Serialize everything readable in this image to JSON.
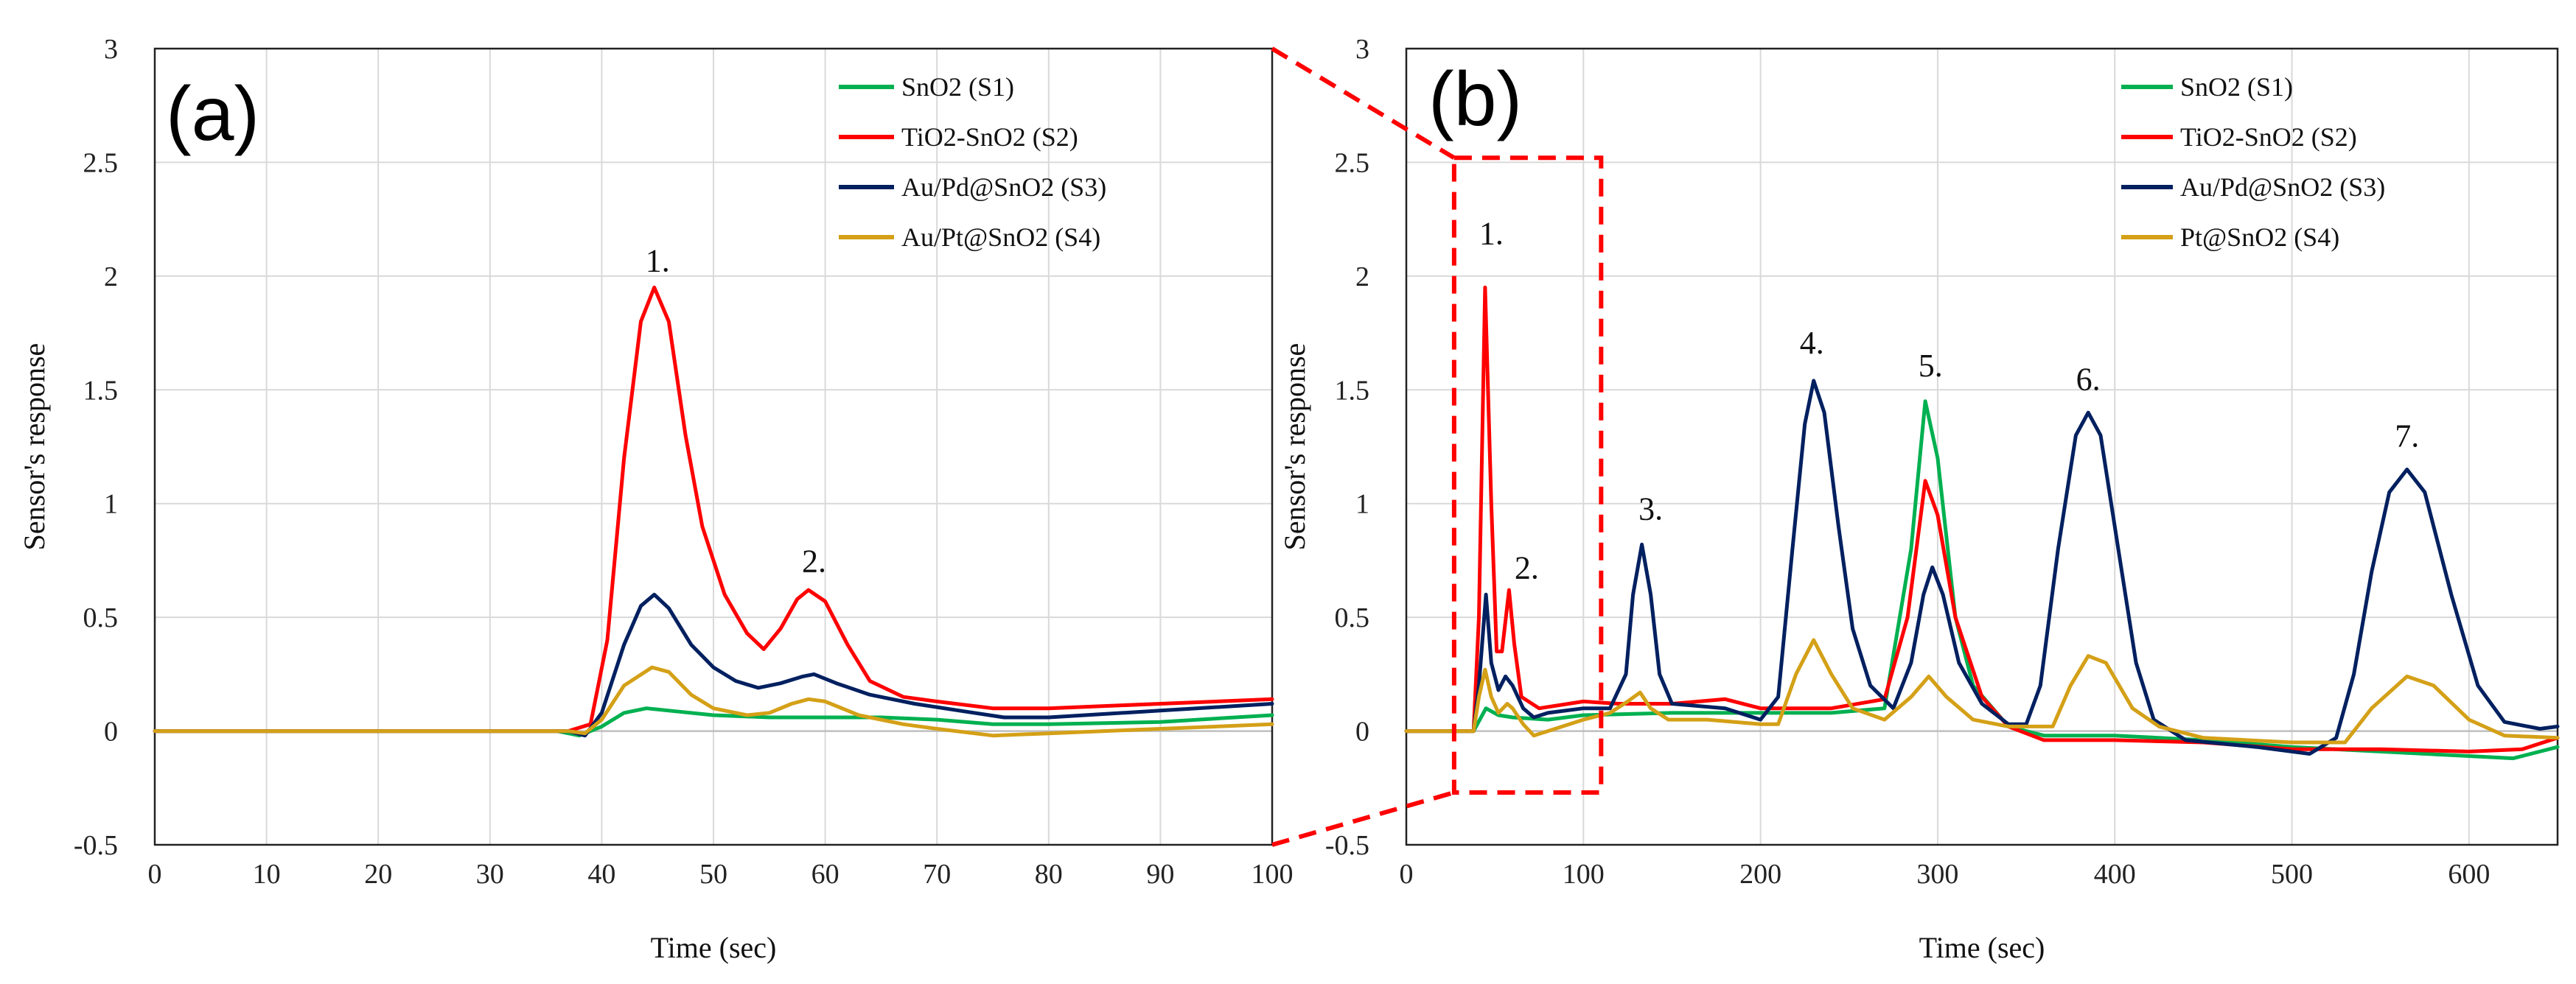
{
  "chart_data": [
    {
      "type": "line",
      "panel_label": "(a)",
      "xlabel": "Time (sec)",
      "ylabel": "Sensor's response",
      "xlim": [
        0,
        100
      ],
      "ylim": [
        -0.5,
        3
      ],
      "xticks": [
        "0",
        "10",
        "20",
        "30",
        "40",
        "50",
        "60",
        "70",
        "80",
        "90",
        "100"
      ],
      "yticks": [
        "-0.5",
        "0",
        "0.5",
        "1",
        "1.5",
        "2",
        "2.5",
        "3"
      ],
      "grid": true,
      "legend": "top-right",
      "peak_labels": [
        {
          "text": "1.",
          "x": 45,
          "y": 2.02
        },
        {
          "text": "2.",
          "x": 59,
          "y": 0.7
        }
      ],
      "series": [
        {
          "name": "SnO2 (S1)",
          "color": "#00b050",
          "points": [
            [
              0,
              0
            ],
            [
              36,
              0
            ],
            [
              38,
              -0.02
            ],
            [
              40,
              0.02
            ],
            [
              42,
              0.08
            ],
            [
              44,
              0.1
            ],
            [
              46,
              0.09
            ],
            [
              50,
              0.07
            ],
            [
              55,
              0.06
            ],
            [
              60,
              0.06
            ],
            [
              65,
              0.06
            ],
            [
              70,
              0.05
            ],
            [
              75,
              0.03
            ],
            [
              80,
              0.03
            ],
            [
              90,
              0.04
            ],
            [
              100,
              0.07
            ]
          ]
        },
        {
          "name": "TiO2-SnO2 (S2)",
          "color": "#ff0000",
          "points": [
            [
              0,
              0
            ],
            [
              37,
              0
            ],
            [
              39,
              0.03
            ],
            [
              40.5,
              0.4
            ],
            [
              42,
              1.2
            ],
            [
              43.5,
              1.8
            ],
            [
              44.7,
              1.95
            ],
            [
              46,
              1.8
            ],
            [
              47.5,
              1.3
            ],
            [
              49,
              0.9
            ],
            [
              51,
              0.6
            ],
            [
              53,
              0.43
            ],
            [
              54.5,
              0.36
            ],
            [
              56,
              0.45
            ],
            [
              57.5,
              0.58
            ],
            [
              58.5,
              0.62
            ],
            [
              60,
              0.57
            ],
            [
              62,
              0.38
            ],
            [
              64,
              0.22
            ],
            [
              67,
              0.15
            ],
            [
              70,
              0.13
            ],
            [
              75,
              0.1
            ],
            [
              80,
              0.1
            ],
            [
              90,
              0.12
            ],
            [
              100,
              0.14
            ]
          ]
        },
        {
          "name": "Au/Pd@SnO2 (S3)",
          "color": "#002060",
          "points": [
            [
              0,
              0
            ],
            [
              37,
              0
            ],
            [
              38.5,
              -0.02
            ],
            [
              40,
              0.08
            ],
            [
              42,
              0.38
            ],
            [
              43.5,
              0.55
            ],
            [
              44.7,
              0.6
            ],
            [
              46,
              0.54
            ],
            [
              48,
              0.38
            ],
            [
              50,
              0.28
            ],
            [
              52,
              0.22
            ],
            [
              54,
              0.19
            ],
            [
              56,
              0.21
            ],
            [
              58,
              0.24
            ],
            [
              59,
              0.25
            ],
            [
              61,
              0.21
            ],
            [
              64,
              0.16
            ],
            [
              68,
              0.12
            ],
            [
              72,
              0.09
            ],
            [
              76,
              0.06
            ],
            [
              80,
              0.06
            ],
            [
              90,
              0.09
            ],
            [
              100,
              0.12
            ]
          ]
        },
        {
          "name": "Au/Pt@SnO2 (S4)",
          "color": "#d4a017",
          "points": [
            [
              0,
              0
            ],
            [
              37,
              0
            ],
            [
              38.5,
              -0.01
            ],
            [
              40,
              0.05
            ],
            [
              42,
              0.2
            ],
            [
              44.5,
              0.28
            ],
            [
              46,
              0.26
            ],
            [
              48,
              0.16
            ],
            [
              50,
              0.1
            ],
            [
              53,
              0.07
            ],
            [
              55,
              0.08
            ],
            [
              57,
              0.12
            ],
            [
              58.5,
              0.14
            ],
            [
              60,
              0.13
            ],
            [
              63,
              0.07
            ],
            [
              67,
              0.03
            ],
            [
              70,
              0.01
            ],
            [
              75,
              -0.02
            ],
            [
              80,
              -0.01
            ],
            [
              90,
              0.01
            ],
            [
              100,
              0.03
            ]
          ]
        }
      ]
    },
    {
      "type": "line",
      "panel_label": "(b)",
      "xlabel": "Time (sec)",
      "ylabel": "Sensor's response",
      "xlim": [
        0,
        650
      ],
      "ylim": [
        -0.5,
        3
      ],
      "xticks": [
        "0",
        "100",
        "200",
        "300",
        "400",
        "500",
        "600"
      ],
      "yticks": [
        "-0.5",
        "0",
        "0.5",
        "1",
        "1.5",
        "2",
        "2.5",
        "3"
      ],
      "grid": true,
      "legend": "top-right",
      "zoom_box": {
        "x": [
          27,
          110
        ],
        "y": [
          -0.27,
          2.52
        ]
      },
      "peak_labels": [
        {
          "text": "1.",
          "x": 48,
          "y": 2.14
        },
        {
          "text": "2.",
          "x": 68,
          "y": 0.67
        },
        {
          "text": "3.",
          "x": 138,
          "y": 0.93
        },
        {
          "text": "4.",
          "x": 229,
          "y": 1.66
        },
        {
          "text": "5.",
          "x": 296,
          "y": 1.56
        },
        {
          "text": "6.",
          "x": 385,
          "y": 1.5
        },
        {
          "text": "7.",
          "x": 565,
          "y": 1.25
        }
      ],
      "series": [
        {
          "name": "SnO2 (S1)",
          "color": "#00b050",
          "points": [
            [
              0,
              0
            ],
            [
              38,
              0
            ],
            [
              45,
              0.1
            ],
            [
              52,
              0.07
            ],
            [
              60,
              0.06
            ],
            [
              80,
              0.05
            ],
            [
              100,
              0.07
            ],
            [
              150,
              0.08
            ],
            [
              200,
              0.08
            ],
            [
              240,
              0.08
            ],
            [
              270,
              0.1
            ],
            [
              285,
              0.8
            ],
            [
              293,
              1.45
            ],
            [
              300,
              1.2
            ],
            [
              310,
              0.5
            ],
            [
              320,
              0.2
            ],
            [
              340,
              0.02
            ],
            [
              360,
              -0.02
            ],
            [
              400,
              -0.02
            ],
            [
              450,
              -0.04
            ],
            [
              500,
              -0.07
            ],
            [
              550,
              -0.09
            ],
            [
              600,
              -0.11
            ],
            [
              625,
              -0.12
            ],
            [
              650,
              -0.07
            ]
          ]
        },
        {
          "name": "TiO2-SnO2 (S2)",
          "color": "#ff0000",
          "points": [
            [
              0,
              0
            ],
            [
              38,
              0
            ],
            [
              41,
              0.5
            ],
            [
              44.5,
              1.95
            ],
            [
              48,
              1.0
            ],
            [
              51,
              0.35
            ],
            [
              54,
              0.35
            ],
            [
              58,
              0.62
            ],
            [
              61,
              0.38
            ],
            [
              65,
              0.15
            ],
            [
              75,
              0.1
            ],
            [
              100,
              0.13
            ],
            [
              120,
              0.12
            ],
            [
              150,
              0.12
            ],
            [
              180,
              0.14
            ],
            [
              200,
              0.1
            ],
            [
              240,
              0.1
            ],
            [
              270,
              0.14
            ],
            [
              283,
              0.5
            ],
            [
              293,
              1.1
            ],
            [
              300,
              0.95
            ],
            [
              310,
              0.5
            ],
            [
              325,
              0.15
            ],
            [
              340,
              0.02
            ],
            [
              360,
              -0.04
            ],
            [
              400,
              -0.04
            ],
            [
              450,
              -0.05
            ],
            [
              500,
              -0.08
            ],
            [
              550,
              -0.08
            ],
            [
              600,
              -0.09
            ],
            [
              630,
              -0.08
            ],
            [
              650,
              -0.03
            ]
          ]
        },
        {
          "name": "Au/Pd@SnO2 (S3)",
          "color": "#002060",
          "points": [
            [
              0,
              0
            ],
            [
              38,
              0
            ],
            [
              41,
              0.2
            ],
            [
              45,
              0.6
            ],
            [
              48,
              0.3
            ],
            [
              52,
              0.18
            ],
            [
              56,
              0.24
            ],
            [
              60,
              0.2
            ],
            [
              66,
              0.1
            ],
            [
              72,
              0.06
            ],
            [
              80,
              0.08
            ],
            [
              100,
              0.1
            ],
            [
              115,
              0.1
            ],
            [
              124,
              0.25
            ],
            [
              128,
              0.6
            ],
            [
              133,
              0.82
            ],
            [
              138,
              0.6
            ],
            [
              143,
              0.25
            ],
            [
              150,
              0.12
            ],
            [
              180,
              0.1
            ],
            [
              200,
              0.05
            ],
            [
              210,
              0.15
            ],
            [
              218,
              0.8
            ],
            [
              225,
              1.35
            ],
            [
              230,
              1.54
            ],
            [
              236,
              1.4
            ],
            [
              244,
              0.9
            ],
            [
              252,
              0.45
            ],
            [
              262,
              0.2
            ],
            [
              275,
              0.1
            ],
            [
              285,
              0.3
            ],
            [
              292,
              0.6
            ],
            [
              297,
              0.72
            ],
            [
              303,
              0.6
            ],
            [
              312,
              0.3
            ],
            [
              325,
              0.12
            ],
            [
              340,
              0.03
            ],
            [
              350,
              0.03
            ],
            [
              358,
              0.2
            ],
            [
              368,
              0.8
            ],
            [
              378,
              1.3
            ],
            [
              385,
              1.4
            ],
            [
              392,
              1.3
            ],
            [
              402,
              0.8
            ],
            [
              412,
              0.3
            ],
            [
              422,
              0.05
            ],
            [
              440,
              -0.04
            ],
            [
              480,
              -0.07
            ],
            [
              510,
              -0.1
            ],
            [
              525,
              -0.03
            ],
            [
              535,
              0.25
            ],
            [
              545,
              0.7
            ],
            [
              555,
              1.05
            ],
            [
              565,
              1.15
            ],
            [
              575,
              1.05
            ],
            [
              590,
              0.6
            ],
            [
              605,
              0.2
            ],
            [
              620,
              0.04
            ],
            [
              640,
              0.01
            ],
            [
              650,
              0.02
            ]
          ]
        },
        {
          "name": "Pt@SnO2 (S4)",
          "color": "#d4a017",
          "points": [
            [
              0,
              0
            ],
            [
              38,
              0
            ],
            [
              41,
              0.15
            ],
            [
              44.5,
              0.27
            ],
            [
              48,
              0.15
            ],
            [
              52,
              0.08
            ],
            [
              57,
              0.12
            ],
            [
              60,
              0.1
            ],
            [
              66,
              0.03
            ],
            [
              72,
              -0.02
            ],
            [
              80,
              0
            ],
            [
              100,
              0.05
            ],
            [
              115,
              0.08
            ],
            [
              125,
              0.13
            ],
            [
              132,
              0.17
            ],
            [
              138,
              0.1
            ],
            [
              148,
              0.05
            ],
            [
              170,
              0.05
            ],
            [
              200,
              0.03
            ],
            [
              210,
              0.03
            ],
            [
              220,
              0.25
            ],
            [
              230,
              0.4
            ],
            [
              240,
              0.25
            ],
            [
              252,
              0.1
            ],
            [
              270,
              0.05
            ],
            [
              285,
              0.15
            ],
            [
              295,
              0.24
            ],
            [
              305,
              0.15
            ],
            [
              320,
              0.05
            ],
            [
              340,
              0.02
            ],
            [
              365,
              0.02
            ],
            [
              375,
              0.2
            ],
            [
              385,
              0.33
            ],
            [
              395,
              0.3
            ],
            [
              410,
              0.1
            ],
            [
              425,
              0.02
            ],
            [
              450,
              -0.03
            ],
            [
              500,
              -0.05
            ],
            [
              530,
              -0.05
            ],
            [
              545,
              0.1
            ],
            [
              565,
              0.24
            ],
            [
              580,
              0.2
            ],
            [
              600,
              0.05
            ],
            [
              620,
              -0.02
            ],
            [
              650,
              -0.03
            ]
          ]
        }
      ]
    }
  ]
}
